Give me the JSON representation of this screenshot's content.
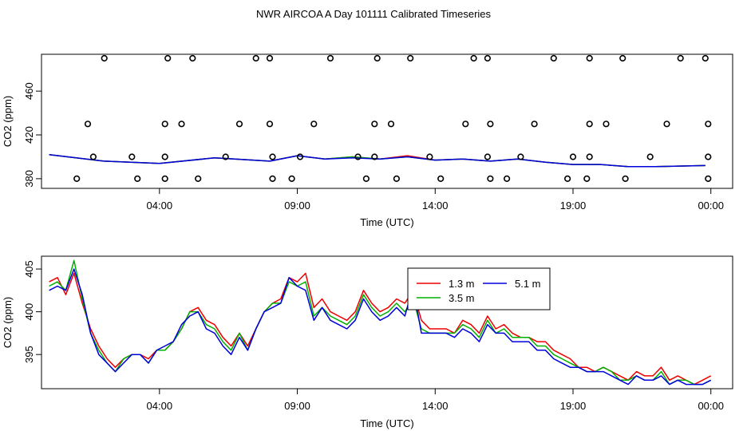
{
  "title": "NWR AIRCOA A  Day 101111  Calibrated Timeseries",
  "chart_data": [
    {
      "type": "line+scatter",
      "xlabel": "Time (UTC)",
      "ylabel": "CO2 (ppm)",
      "xlim": [
        0,
        24
      ],
      "ylim": [
        377,
        490
      ],
      "xticks": [
        {
          "v": 4,
          "label": "04:00"
        },
        {
          "v": 9,
          "label": "09:00"
        },
        {
          "v": 14,
          "label": "14:00"
        },
        {
          "v": 19,
          "label": "19:00"
        },
        {
          "v": 24,
          "label": "00:00"
        }
      ],
      "yticks": [
        {
          "v": 380,
          "label": "380"
        },
        {
          "v": 420,
          "label": "420"
        },
        {
          "v": 460,
          "label": "460"
        }
      ],
      "scatter_points": [
        [
          1.0,
          380
        ],
        [
          3.2,
          380
        ],
        [
          4.2,
          380
        ],
        [
          5.4,
          380
        ],
        [
          8.1,
          380
        ],
        [
          8.8,
          380
        ],
        [
          11.5,
          380
        ],
        [
          12.6,
          380
        ],
        [
          14.2,
          380
        ],
        [
          16.0,
          380
        ],
        [
          16.6,
          380
        ],
        [
          18.8,
          380
        ],
        [
          19.5,
          380
        ],
        [
          20.9,
          380
        ],
        [
          23.9,
          380
        ],
        [
          1.6,
          400
        ],
        [
          3.0,
          400
        ],
        [
          4.2,
          400
        ],
        [
          6.4,
          400
        ],
        [
          8.1,
          400
        ],
        [
          9.1,
          400
        ],
        [
          11.2,
          400
        ],
        [
          11.8,
          400
        ],
        [
          13.8,
          400
        ],
        [
          15.9,
          400
        ],
        [
          17.1,
          400
        ],
        [
          19.0,
          400
        ],
        [
          19.6,
          400
        ],
        [
          21.8,
          400
        ],
        [
          23.9,
          400
        ],
        [
          1.4,
          430
        ],
        [
          4.2,
          430
        ],
        [
          4.8,
          430
        ],
        [
          6.9,
          430
        ],
        [
          8.0,
          430
        ],
        [
          9.6,
          430
        ],
        [
          11.8,
          430
        ],
        [
          12.4,
          430
        ],
        [
          15.1,
          430
        ],
        [
          16.0,
          430
        ],
        [
          17.6,
          430
        ],
        [
          19.6,
          430
        ],
        [
          20.2,
          430
        ],
        [
          22.4,
          430
        ],
        [
          23.9,
          430
        ],
        [
          2.0,
          490
        ],
        [
          4.3,
          490
        ],
        [
          5.2,
          490
        ],
        [
          7.5,
          490
        ],
        [
          8.0,
          490
        ],
        [
          10.2,
          490
        ],
        [
          11.9,
          490
        ],
        [
          13.1,
          490
        ],
        [
          15.4,
          490
        ],
        [
          15.9,
          490
        ],
        [
          18.3,
          490
        ],
        [
          19.6,
          490
        ],
        [
          20.8,
          490
        ],
        [
          22.9,
          490
        ],
        [
          23.8,
          490
        ]
      ],
      "series": [
        {
          "name": "1.3 m",
          "color": "#ee0000",
          "x": [
            0,
            2,
            4,
            6,
            8,
            9,
            10,
            11,
            12,
            13,
            14,
            15,
            16,
            17,
            18,
            19,
            20,
            21,
            22,
            23.8
          ],
          "values": [
            402,
            396,
            394,
            399,
            396,
            401,
            398,
            400,
            398,
            401,
            397,
            398,
            396,
            398,
            395,
            393,
            393,
            391,
            391,
            392
          ]
        },
        {
          "name": "3.5 m",
          "color": "#00b000",
          "x": [
            0,
            2,
            4,
            6,
            8,
            9,
            10,
            11,
            12,
            13,
            14,
            15,
            16,
            17,
            18,
            19,
            20,
            21,
            22,
            23.8
          ],
          "values": [
            402,
            396,
            394,
            399,
            396,
            401,
            398,
            400,
            398,
            400,
            397,
            398,
            396,
            398,
            395,
            393,
            393,
            391,
            391,
            392
          ]
        },
        {
          "name": "5.1 m",
          "color": "#0000dd",
          "x": [
            0,
            2,
            4,
            6,
            8,
            9,
            10,
            11,
            12,
            13,
            14,
            15,
            16,
            17,
            18,
            19,
            20,
            21,
            22,
            23.8
          ],
          "values": [
            402,
            396,
            394,
            399,
            396,
            401,
            398,
            399,
            398,
            400,
            397,
            398,
            396,
            398,
            395,
            393,
            393,
            391,
            391,
            392
          ]
        }
      ]
    },
    {
      "type": "line",
      "xlabel": "Time (UTC)",
      "ylabel": "CO2 (ppm)",
      "xlim": [
        0,
        24
      ],
      "ylim": [
        391,
        406.5
      ],
      "xticks": [
        {
          "v": 4,
          "label": "04:00"
        },
        {
          "v": 9,
          "label": "09:00"
        },
        {
          "v": 14,
          "label": "14:00"
        },
        {
          "v": 19,
          "label": "19:00"
        },
        {
          "v": 24,
          "label": "00:00"
        }
      ],
      "yticks": [
        {
          "v": 395,
          "label": "395"
        },
        {
          "v": 400,
          "label": "400"
        },
        {
          "v": 405,
          "label": "405"
        }
      ],
      "legend": {
        "position": "top-center-right",
        "entries": [
          "1.3 m",
          "3.5 m",
          "5.1 m"
        ]
      },
      "series": [
        {
          "name": "1.3 m",
          "color": "#ee0000",
          "x": [
            0.0,
            0.3,
            0.6,
            0.9,
            1.2,
            1.5,
            1.8,
            2.1,
            2.4,
            2.7,
            3.0,
            3.3,
            3.6,
            3.9,
            4.2,
            4.5,
            4.8,
            5.1,
            5.4,
            5.7,
            6.0,
            6.3,
            6.6,
            6.9,
            7.2,
            7.5,
            7.8,
            8.1,
            8.4,
            8.7,
            9.0,
            9.3,
            9.6,
            9.9,
            10.2,
            10.5,
            10.8,
            11.1,
            11.4,
            11.7,
            12.0,
            12.3,
            12.6,
            12.9,
            13.2,
            13.5,
            13.8,
            14.1,
            14.4,
            14.7,
            15.0,
            15.3,
            15.6,
            15.9,
            16.2,
            16.5,
            16.8,
            17.1,
            17.4,
            17.7,
            18.0,
            18.3,
            18.6,
            18.9,
            19.2,
            19.5,
            19.8,
            20.1,
            20.4,
            20.7,
            21.0,
            21.3,
            21.6,
            21.9,
            22.2,
            22.5,
            22.8,
            23.1,
            23.4,
            23.7,
            24.0
          ],
          "values": [
            403.5,
            404.0,
            402.0,
            404.5,
            401.0,
            398.0,
            396.0,
            394.5,
            393.5,
            394.5,
            395.0,
            395.0,
            394.5,
            395.5,
            395.5,
            396.5,
            398.0,
            400.0,
            400.5,
            399.0,
            398.5,
            397.0,
            396.0,
            397.5,
            396.0,
            398.0,
            400.0,
            401.0,
            401.5,
            404.0,
            403.5,
            404.5,
            400.5,
            401.5,
            400.0,
            399.5,
            399.0,
            400.0,
            402.5,
            401.0,
            400.0,
            400.5,
            401.5,
            401.0,
            402.5,
            399.0,
            398.0,
            398.0,
            398.0,
            397.5,
            399.0,
            398.5,
            397.5,
            399.5,
            398.0,
            398.5,
            397.5,
            397.0,
            397.0,
            396.5,
            396.5,
            395.5,
            395.0,
            394.5,
            393.5,
            393.5,
            393.0,
            393.5,
            393.0,
            392.5,
            392.0,
            393.0,
            392.5,
            392.5,
            393.5,
            392.0,
            392.5,
            392.0,
            391.5,
            392.0,
            392.5
          ]
        },
        {
          "name": "3.5 m",
          "color": "#00b000",
          "x": [
            0.0,
            0.3,
            0.6,
            0.9,
            1.2,
            1.5,
            1.8,
            2.1,
            2.4,
            2.7,
            3.0,
            3.3,
            3.6,
            3.9,
            4.2,
            4.5,
            4.8,
            5.1,
            5.4,
            5.7,
            6.0,
            6.3,
            6.6,
            6.9,
            7.2,
            7.5,
            7.8,
            8.1,
            8.4,
            8.7,
            9.0,
            9.3,
            9.6,
            9.9,
            10.2,
            10.5,
            10.8,
            11.1,
            11.4,
            11.7,
            12.0,
            12.3,
            12.6,
            12.9,
            13.2,
            13.5,
            13.8,
            14.1,
            14.4,
            14.7,
            15.0,
            15.3,
            15.6,
            15.9,
            16.2,
            16.5,
            16.8,
            17.1,
            17.4,
            17.7,
            18.0,
            18.3,
            18.6,
            18.9,
            19.2,
            19.5,
            19.8,
            20.1,
            20.4,
            20.7,
            21.0,
            21.3,
            21.6,
            21.9,
            22.2,
            22.5,
            22.8,
            23.1,
            23.4,
            23.7,
            24.0
          ],
          "values": [
            403.0,
            403.5,
            402.5,
            406.0,
            401.5,
            397.5,
            395.5,
            394.0,
            393.0,
            394.5,
            395.0,
            395.0,
            394.0,
            395.5,
            395.5,
            396.5,
            398.0,
            400.0,
            400.0,
            398.5,
            398.0,
            396.5,
            395.5,
            397.5,
            395.5,
            398.0,
            400.0,
            401.0,
            401.0,
            403.5,
            403.0,
            403.5,
            399.5,
            400.5,
            399.5,
            399.0,
            398.5,
            399.5,
            402.0,
            400.5,
            399.5,
            400.0,
            401.0,
            400.0,
            401.5,
            398.0,
            397.5,
            397.5,
            397.5,
            397.5,
            398.5,
            398.0,
            397.0,
            399.0,
            397.5,
            398.0,
            397.0,
            397.0,
            397.0,
            396.0,
            396.0,
            395.0,
            394.5,
            394.0,
            393.5,
            393.0,
            393.0,
            393.5,
            393.0,
            392.0,
            392.0,
            392.5,
            392.0,
            392.0,
            393.0,
            391.5,
            392.0,
            392.0,
            391.5,
            391.5,
            392.0
          ]
        },
        {
          "name": "5.1 m",
          "color": "#0000dd",
          "x": [
            0.0,
            0.3,
            0.6,
            0.9,
            1.2,
            1.5,
            1.8,
            2.1,
            2.4,
            2.7,
            3.0,
            3.3,
            3.6,
            3.9,
            4.2,
            4.5,
            4.8,
            5.1,
            5.4,
            5.7,
            6.0,
            6.3,
            6.6,
            6.9,
            7.2,
            7.5,
            7.8,
            8.1,
            8.4,
            8.7,
            9.0,
            9.3,
            9.6,
            9.9,
            10.2,
            10.5,
            10.8,
            11.1,
            11.4,
            11.7,
            12.0,
            12.3,
            12.6,
            12.9,
            13.2,
            13.5,
            13.8,
            14.1,
            14.4,
            14.7,
            15.0,
            15.3,
            15.6,
            15.9,
            16.2,
            16.5,
            16.8,
            17.1,
            17.4,
            17.7,
            18.0,
            18.3,
            18.6,
            18.9,
            19.2,
            19.5,
            19.8,
            20.1,
            20.4,
            20.7,
            21.0,
            21.3,
            21.6,
            21.9,
            22.2,
            22.5,
            22.8,
            23.1,
            23.4,
            23.7,
            24.0
          ],
          "values": [
            402.5,
            403.0,
            402.5,
            405.0,
            402.0,
            397.5,
            395.0,
            394.0,
            393.0,
            394.0,
            395.0,
            395.0,
            394.0,
            395.5,
            396.0,
            396.5,
            398.5,
            399.5,
            400.0,
            398.0,
            397.5,
            396.0,
            395.0,
            397.0,
            395.5,
            398.0,
            400.0,
            400.5,
            401.0,
            404.0,
            403.0,
            402.5,
            399.0,
            400.5,
            399.0,
            398.5,
            398.0,
            399.0,
            401.5,
            400.0,
            399.0,
            399.5,
            400.5,
            399.5,
            403.0,
            397.5,
            397.5,
            397.5,
            397.5,
            397.0,
            398.0,
            397.5,
            396.5,
            398.5,
            397.5,
            397.5,
            396.5,
            396.5,
            396.5,
            395.5,
            395.5,
            394.5,
            394.0,
            393.5,
            393.5,
            393.0,
            393.0,
            393.0,
            392.5,
            392.0,
            391.5,
            392.5,
            392.0,
            392.0,
            392.5,
            391.5,
            392.0,
            391.5,
            391.5,
            391.5,
            392.0
          ]
        }
      ]
    }
  ]
}
